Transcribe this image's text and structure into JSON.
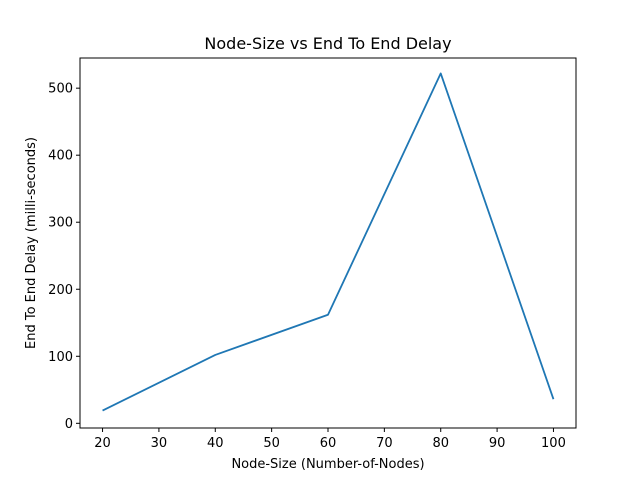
{
  "chart_data": {
    "type": "line",
    "title": "Node-Size vs End To End Delay",
    "xlabel": "Node-Size (Number-of-Nodes)",
    "ylabel": "End To End Delay (milli-seconds)",
    "x": [
      20,
      40,
      60,
      80,
      100
    ],
    "series": [
      {
        "values": [
          19,
          102,
          162,
          522,
          36
        ],
        "color": "#1f77b4"
      }
    ],
    "xlim": [
      16,
      104
    ],
    "ylim": [
      -7,
      545
    ],
    "xticks": [
      20,
      30,
      40,
      50,
      60,
      70,
      80,
      90,
      100
    ],
    "yticks": [
      0,
      100,
      200,
      300,
      400,
      500
    ],
    "grid": false,
    "legend": "none"
  }
}
